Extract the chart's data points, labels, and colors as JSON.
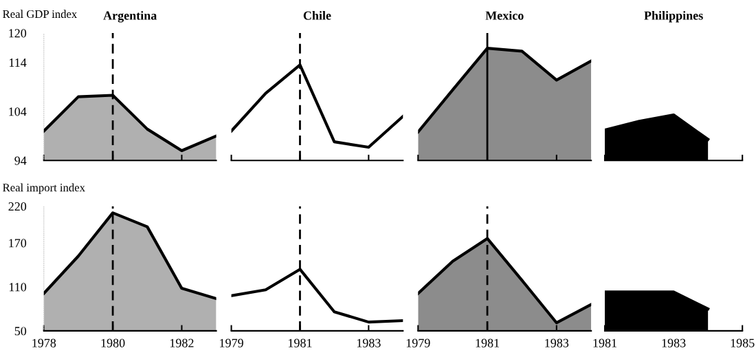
{
  "chart_data": [
    {
      "type": "area",
      "title": "Argentina",
      "ylabel": "Real GDP index",
      "x": [
        1978,
        1979,
        1980,
        1981,
        1982,
        1983
      ],
      "series": [
        {
          "color": "#b0b0b0",
          "values": [
            100,
            107,
            107.3,
            100.4,
            96,
            99
          ]
        }
      ],
      "xlim": [
        1978,
        1983
      ],
      "xticks": [
        1978,
        1980,
        1982
      ],
      "ylim": [
        94,
        120
      ],
      "yticks": [
        94,
        104,
        114,
        120
      ],
      "ref_lines": [
        {
          "axis": "x",
          "value": 1980,
          "line_style": "dashed"
        }
      ],
      "tick_labels": "y"
    },
    {
      "type": "line",
      "title": "Chile",
      "x": [
        1979,
        1980,
        1981,
        1982,
        1983,
        1984
      ],
      "series": [
        {
          "color": "#000000",
          "values": [
            100,
            107.7,
            113.5,
            97.8,
            96.7,
            103
          ]
        }
      ],
      "xlim": [
        1979,
        1984
      ],
      "xticks": [
        1979,
        1981,
        1983
      ],
      "ylim": [
        94,
        120
      ],
      "yticks": [
        94,
        104,
        114,
        120
      ],
      "ref_lines": [
        {
          "axis": "x",
          "value": 1981,
          "line_style": "dashed"
        }
      ],
      "tick_labels": false
    },
    {
      "type": "area",
      "title": "Mexico",
      "x": [
        1979,
        1980,
        1981,
        1982,
        1983,
        1984
      ],
      "series": [
        {
          "color": "#8c8c8c",
          "values": [
            99.8,
            108.4,
            116.9,
            116.3,
            110.4,
            114.3
          ]
        }
      ],
      "xlim": [
        1979,
        1984
      ],
      "xticks": [
        1979,
        1981,
        1983
      ],
      "ylim": [
        94,
        120
      ],
      "yticks": [
        94,
        104,
        114,
        120
      ],
      "ref_lines": [
        {
          "axis": "x",
          "value": 1981,
          "line_style": "solid"
        }
      ],
      "tick_labels": false
    },
    {
      "type": "area",
      "title": "Philippines",
      "x": [
        1981,
        1982,
        1983,
        1984
      ],
      "series": [
        {
          "color": "#000000",
          "values": [
            100.2,
            102,
            103.3,
            98.3
          ]
        }
      ],
      "xlim": [
        1981,
        1985
      ],
      "xticks": [
        1981,
        1983,
        1985
      ],
      "ylim": [
        94,
        120
      ],
      "yticks": [
        94,
        104,
        114,
        120
      ],
      "tick_labels": false
    },
    {
      "type": "area",
      "ylabel": "Real import index",
      "x": [
        1978,
        1979,
        1980,
        1981,
        1982,
        1983
      ],
      "series": [
        {
          "color": "#b0b0b0",
          "values": [
            101,
            152,
            211,
            192,
            108,
            94
          ]
        }
      ],
      "xlim": [
        1978,
        1983
      ],
      "xticks": [
        1978,
        1980,
        1982
      ],
      "ylim": [
        50,
        220
      ],
      "yticks": [
        50,
        110,
        170,
        220
      ],
      "ref_lines": [
        {
          "axis": "x",
          "value": 1980,
          "line_style": "dashed"
        }
      ]
    },
    {
      "type": "line",
      "x": [
        1979,
        1980,
        1981,
        1982,
        1983,
        1984
      ],
      "series": [
        {
          "color": "#000000",
          "values": [
            98,
            106,
            134,
            76,
            62,
            64
          ]
        }
      ],
      "xlim": [
        1979,
        1984
      ],
      "xticks": [
        1979,
        1981,
        1983
      ],
      "ylim": [
        50,
        220
      ],
      "yticks": [
        50,
        110,
        170,
        220
      ],
      "ref_lines": [
        {
          "axis": "x",
          "value": 1981,
          "line_style": "dashed"
        }
      ],
      "tick_labels": "x"
    },
    {
      "type": "area",
      "x": [
        1979,
        1980,
        1981,
        1982,
        1983,
        1984
      ],
      "series": [
        {
          "color": "#8c8c8c",
          "values": [
            101,
            145,
            176,
            119,
            61,
            86
          ]
        }
      ],
      "xlim": [
        1979,
        1984
      ],
      "xticks": [
        1979,
        1981,
        1983
      ],
      "ylim": [
        50,
        220
      ],
      "yticks": [
        50,
        110,
        170,
        220
      ],
      "ref_lines": [
        {
          "axis": "x",
          "value": 1981,
          "line_style": "dashed"
        }
      ],
      "tick_labels": "x"
    },
    {
      "type": "area",
      "x": [
        1981,
        1982,
        1983,
        1984
      ],
      "series": [
        {
          "color": "#000000",
          "values": [
            103,
            103,
            103,
            80
          ]
        }
      ],
      "xlim": [
        1981,
        1985
      ],
      "xticks": [
        1981,
        1983,
        1985
      ],
      "ylim": [
        50,
        220
      ],
      "yticks": [
        50,
        110,
        170,
        220
      ],
      "tick_labels": "x"
    }
  ]
}
